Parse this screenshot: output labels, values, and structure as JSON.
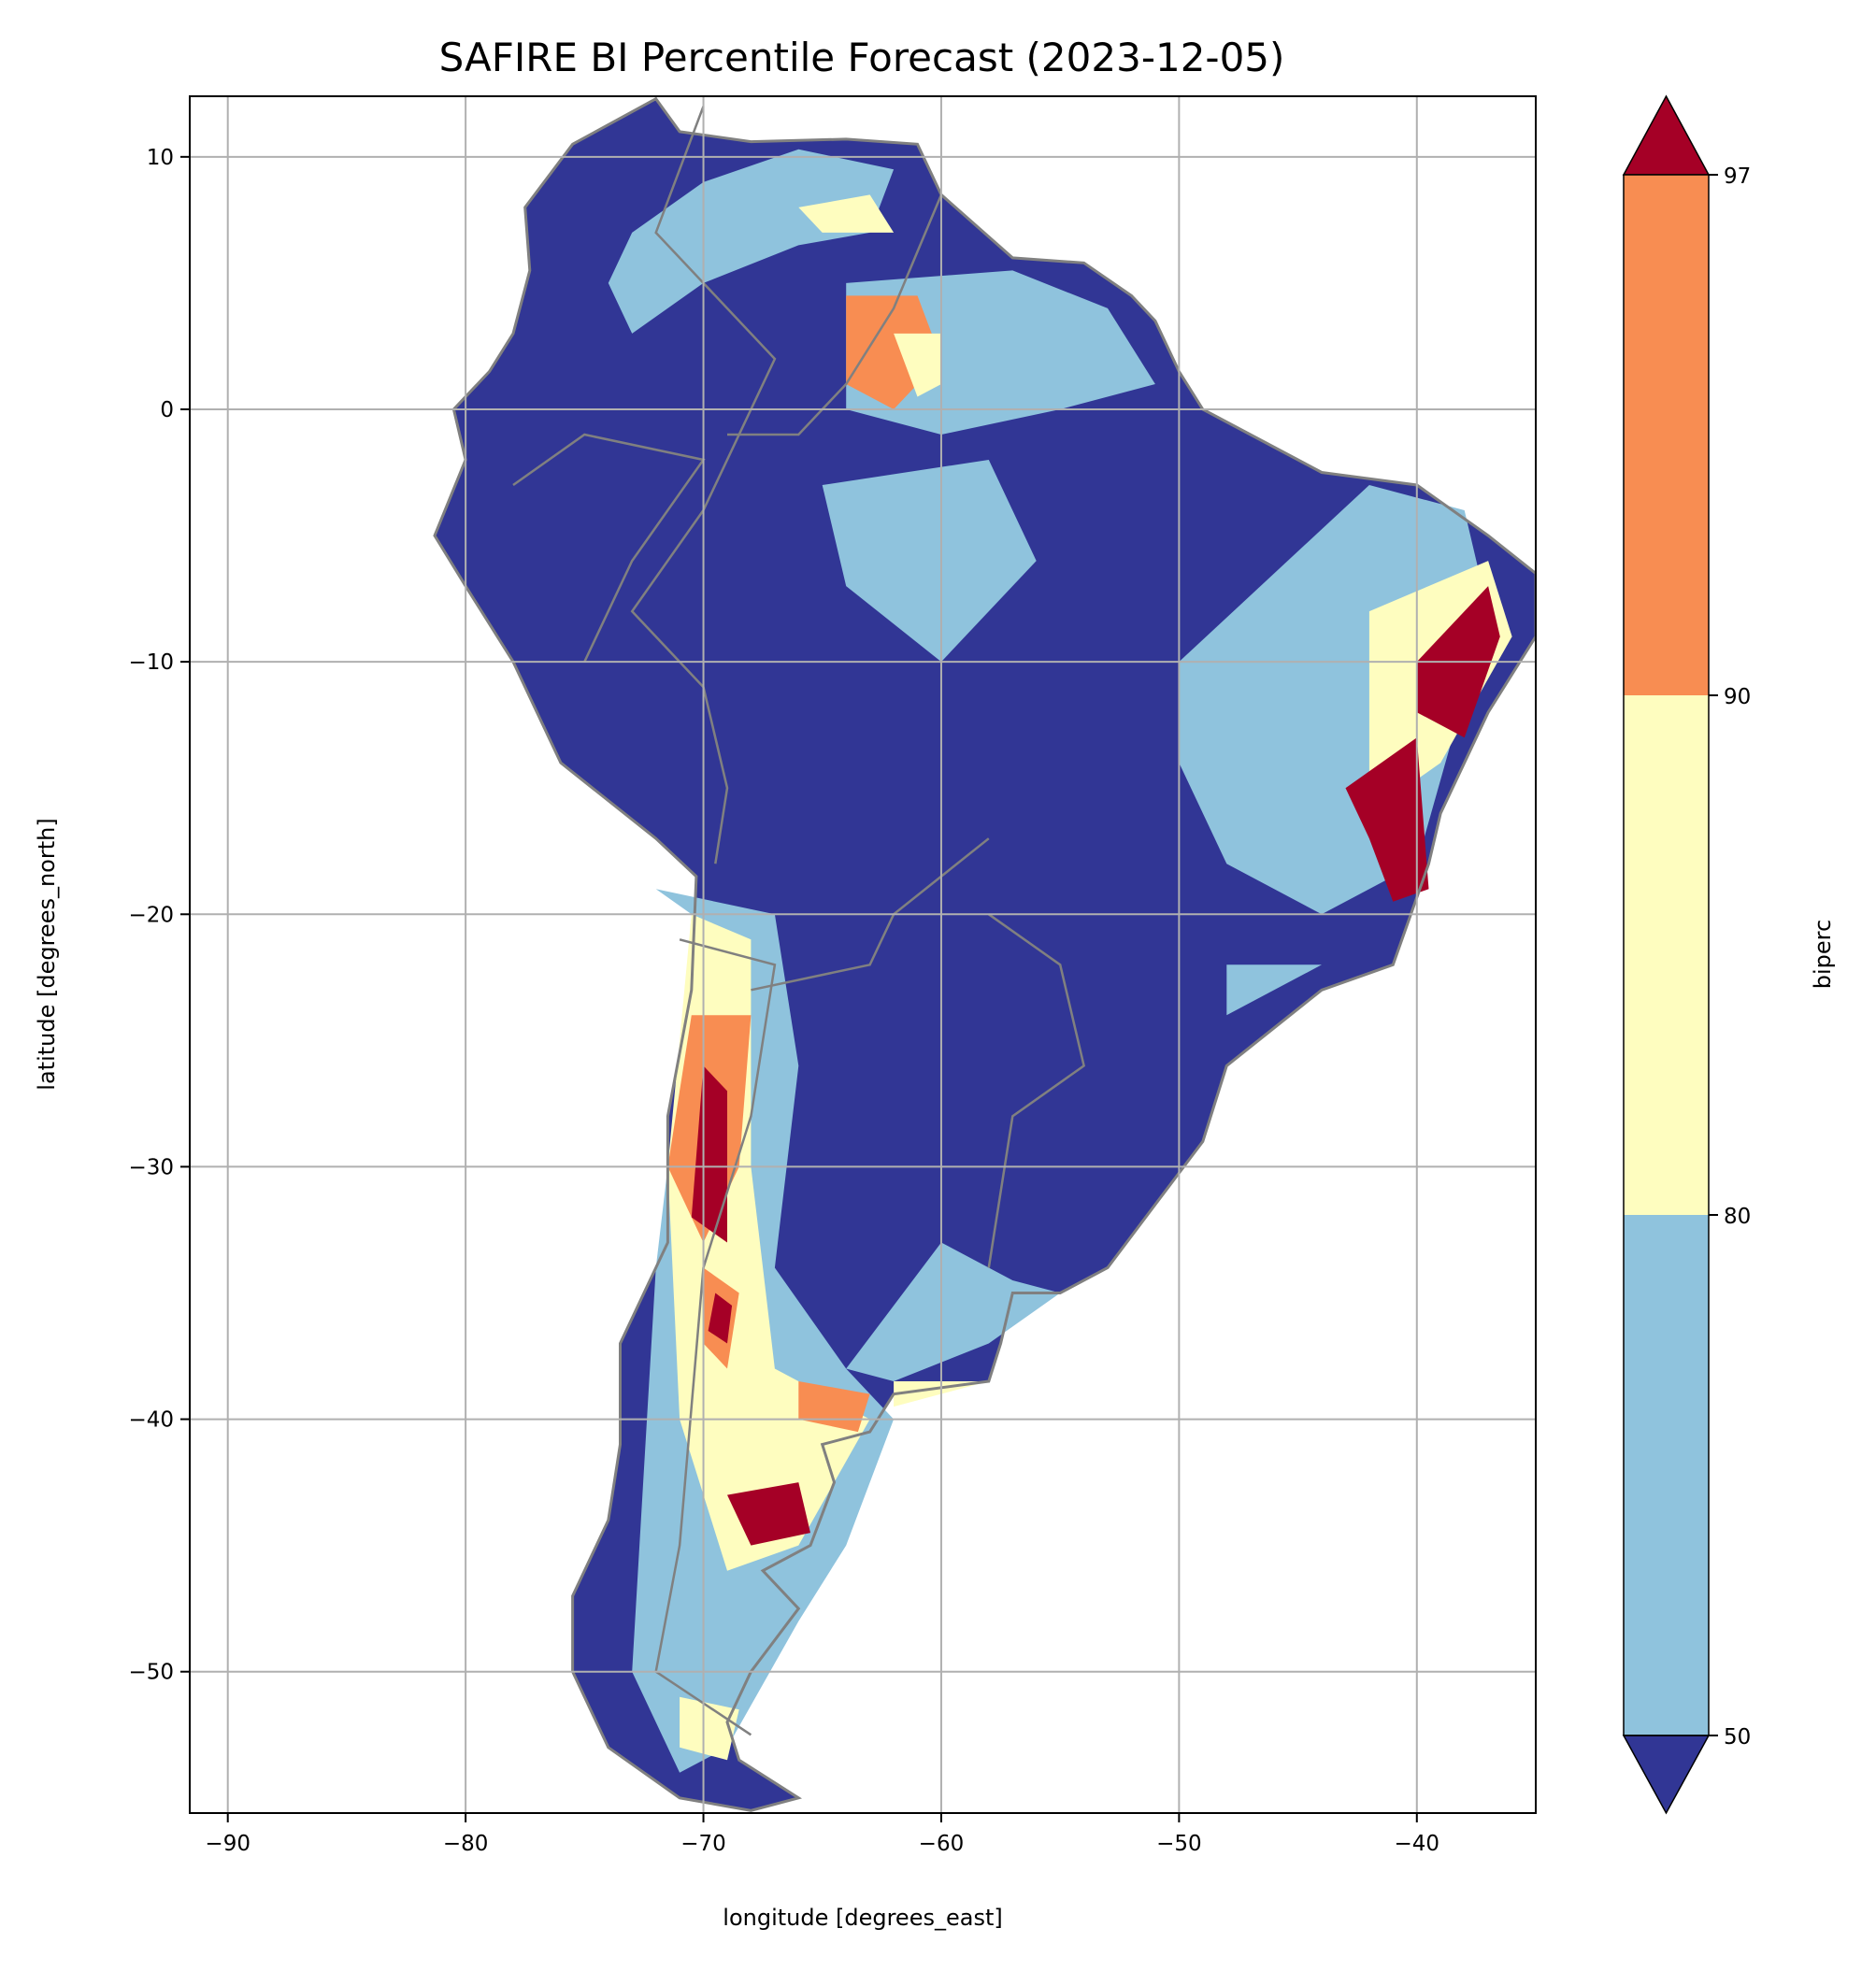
{
  "chart_data": {
    "type": "heatmap",
    "title": "SAFIRE BI Percentile Forecast (2023-12-05)",
    "xlabel": "longitude [degrees_east]",
    "ylabel": "latitude [degrees_north]",
    "xlim": [
      -91.6,
      -35.0
    ],
    "ylim": [
      -55.6,
      12.4
    ],
    "xticks": [
      -90,
      -80,
      -70,
      -60,
      -50,
      -40
    ],
    "xtick_labels": [
      "−90",
      "−80",
      "−70",
      "−60",
      "−50",
      "−40"
    ],
    "yticks": [
      10,
      0,
      -10,
      -20,
      -30,
      -40,
      -50
    ],
    "ytick_labels": [
      "10",
      "0",
      "−10",
      "−20",
      "−30",
      "−40",
      "−50"
    ],
    "grid": true,
    "region": "South America",
    "borders_color": "#808080",
    "colorbar": {
      "label": "biperc",
      "ticks": [
        50,
        80,
        90,
        97
      ],
      "tick_labels": [
        "50",
        "80",
        "90",
        "97"
      ],
      "extend": "both",
      "levels": [
        {
          "range": "<50",
          "color": "#313695"
        },
        {
          "range": "50-80",
          "color": "#8fc3dd"
        },
        {
          "range": "80-90",
          "color": "#fefdbf"
        },
        {
          "range": "90-97",
          "color": "#f88d52"
        },
        {
          "range": ">97",
          "color": "#a50026"
        }
      ]
    }
  }
}
